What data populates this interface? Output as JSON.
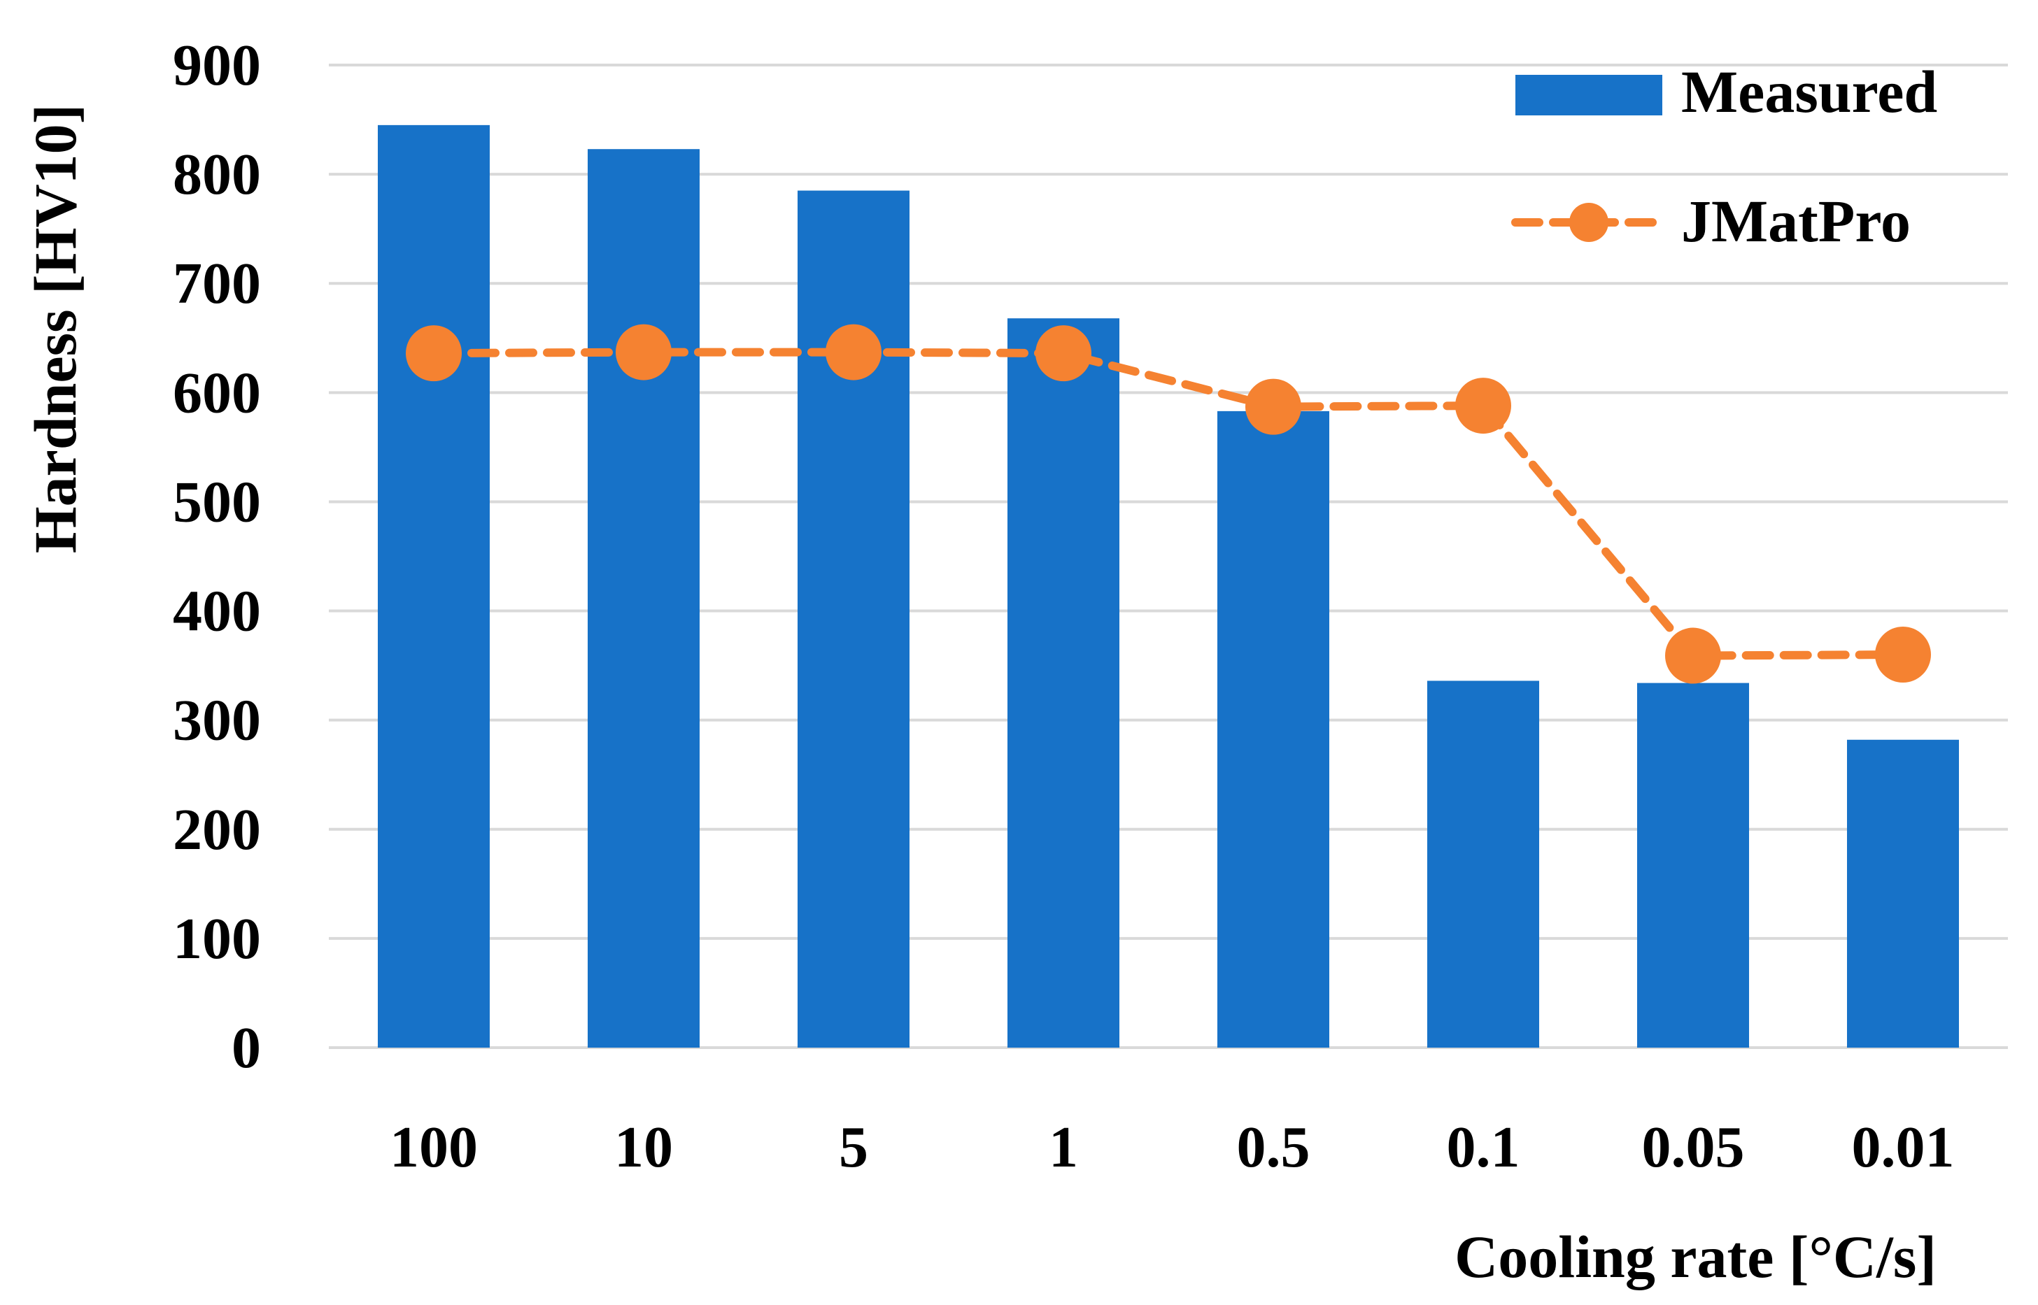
{
  "chart_data": {
    "type": "bar+line",
    "categories": [
      "100",
      "10",
      "5",
      "1",
      "0.5",
      "0.1",
      "0.05",
      "0.01"
    ],
    "series": [
      {
        "name": "Measured",
        "type": "bar",
        "color": "#1772c8",
        "values": [
          845,
          823,
          785,
          668,
          583,
          336,
          334,
          282
        ]
      },
      {
        "name": "JMatPro",
        "type": "line",
        "line_style": "dashed",
        "marker": "circle",
        "color": "#f58231",
        "values": [
          636,
          637,
          637,
          636,
          587,
          588,
          359,
          360
        ]
      }
    ],
    "ylim": [
      0,
      900
    ],
    "yticks": [
      "0",
      "100",
      "200",
      "300",
      "400",
      "500",
      "600",
      "700",
      "800",
      "900"
    ],
    "ylabel": "Hardness [HV10]",
    "xlabel": "Cooling rate [°C/s]",
    "grid": true,
    "legend_position": "top-right"
  }
}
